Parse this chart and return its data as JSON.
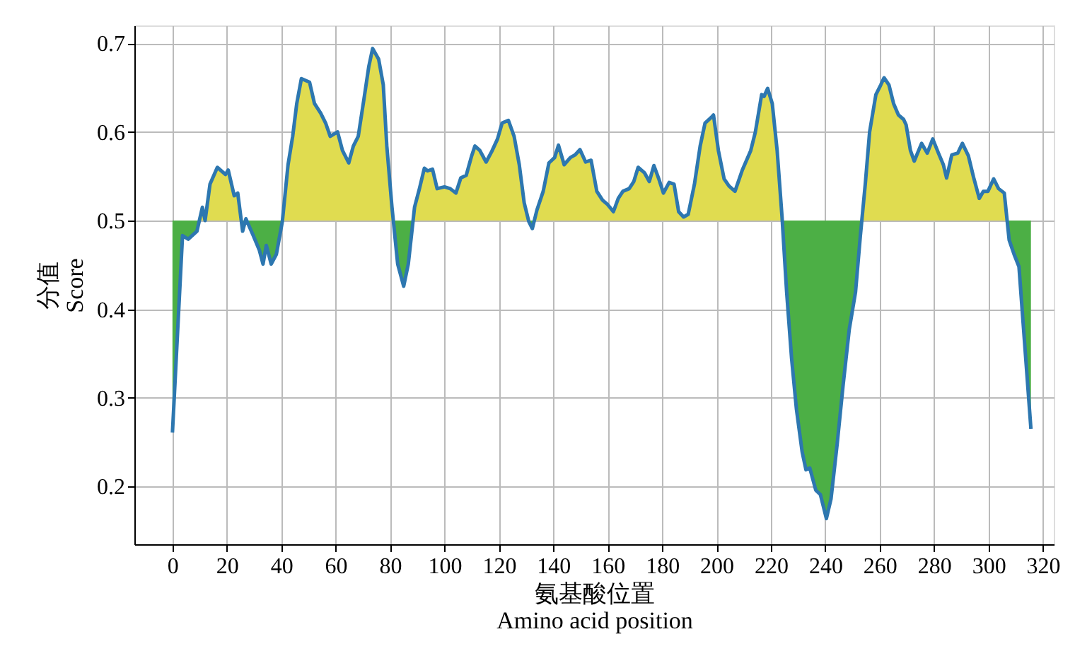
{
  "chart_data": {
    "type": "line",
    "xlabel": "氨基酸位置\nAmino acid position",
    "ylabel": "分值\nScore",
    "xlim": [
      -14,
      324
    ],
    "ylim": [
      0.135,
      0.72
    ],
    "xticks": [
      0,
      20,
      40,
      60,
      80,
      100,
      120,
      140,
      160,
      180,
      200,
      220,
      240,
      260,
      280,
      300,
      320
    ],
    "yticks": [
      0.2,
      0.3,
      0.4,
      0.5,
      0.6,
      0.7
    ],
    "grid": true,
    "colors": [
      "#e0dc50",
      "#4caf45"
    ],
    "series": [
      {
        "color": "#2d77b0",
        "x": [
          0,
          3.7,
          5.8,
          9,
          11,
          12,
          13.8,
          16.5,
          19.5,
          20.5,
          22.7,
          24,
          25.8,
          27,
          29.7,
          31.9,
          33.3,
          34.5,
          36.3,
          38.2,
          40.4,
          42.5,
          44.2,
          45.7,
          47.4,
          50.4,
          52.2,
          54.5,
          56.3,
          58,
          60.7,
          62.5,
          64.8,
          66.5,
          68.3,
          70.4,
          72.2,
          73.6,
          75.8,
          77.5,
          78.8,
          80.7,
          82.8,
          85,
          86.7,
          89,
          90.8,
          92.6,
          93.8,
          95.6,
          97.3,
          100,
          102.1,
          104.2,
          106,
          108,
          110,
          111.2,
          113,
          115.3,
          117.4,
          119.5,
          121.2,
          123.5,
          125.6,
          127.5,
          129.3,
          131,
          132.3,
          134,
          136.3,
          138.4,
          140.5,
          141.9,
          144,
          146.3,
          148,
          149.8,
          151.9,
          153.9,
          156,
          158.1,
          160,
          162.1,
          163.9,
          165.6,
          167.9,
          169.6,
          171.2,
          173.5,
          175.3,
          177,
          178.8,
          180.5,
          182.6,
          184.4,
          186.1,
          187.9,
          189.6,
          191.9,
          194,
          195.8,
          198,
          198.9,
          200.7,
          202.8,
          204.6,
          206.8,
          209.5,
          212.6,
          214.3,
          216.6,
          217.5,
          218.8,
          220.5,
          222.3,
          224.1,
          225.8,
          227.6,
          229.4,
          231.5,
          232.9,
          234.3,
          236.5,
          238.2,
          240.4,
          242.1,
          244.4,
          246.5,
          248.8,
          251.1,
          252.9,
          254.7,
          256.3,
          258.6,
          260.4,
          261.6,
          263.4,
          265.1,
          266.9,
          268.8,
          269.7,
          271.3,
          272.7,
          275.4,
          277.5,
          279.5,
          281.6,
          283.4,
          284.6,
          286.5,
          288.7,
          290.4,
          292.6,
          294.5,
          296.6,
          298.1,
          299.8,
          301.9,
          303.7,
          305.8,
          307.6,
          309.4,
          311.2,
          315.6
        ],
        "values": [
          0.261,
          0.483,
          0.479,
          0.488,
          0.515,
          0.5,
          0.541,
          0.56,
          0.552,
          0.557,
          0.528,
          0.531,
          0.488,
          0.502,
          0.483,
          0.467,
          0.451,
          0.472,
          0.451,
          0.462,
          0.499,
          0.563,
          0.595,
          0.632,
          0.66,
          0.656,
          0.632,
          0.621,
          0.61,
          0.595,
          0.6,
          0.579,
          0.565,
          0.584,
          0.595,
          0.637,
          0.674,
          0.694,
          0.682,
          0.653,
          0.584,
          0.515,
          0.451,
          0.426,
          0.451,
          0.515,
          0.536,
          0.559,
          0.556,
          0.558,
          0.536,
          0.538,
          0.536,
          0.531,
          0.548,
          0.551,
          0.573,
          0.584,
          0.579,
          0.566,
          0.578,
          0.592,
          0.61,
          0.613,
          0.595,
          0.563,
          0.52,
          0.499,
          0.491,
          0.512,
          0.533,
          0.565,
          0.571,
          0.585,
          0.563,
          0.571,
          0.574,
          0.58,
          0.566,
          0.568,
          0.533,
          0.523,
          0.518,
          0.51,
          0.525,
          0.533,
          0.536,
          0.544,
          0.56,
          0.554,
          0.544,
          0.562,
          0.547,
          0.531,
          0.543,
          0.541,
          0.51,
          0.504,
          0.507,
          0.541,
          0.584,
          0.61,
          0.616,
          0.619,
          0.579,
          0.547,
          0.539,
          0.533,
          0.557,
          0.579,
          0.6,
          0.642,
          0.64,
          0.649,
          0.632,
          0.579,
          0.504,
          0.419,
          0.345,
          0.287,
          0.239,
          0.219,
          0.221,
          0.196,
          0.191,
          0.164,
          0.186,
          0.249,
          0.313,
          0.377,
          0.419,
          0.483,
          0.541,
          0.6,
          0.642,
          0.653,
          0.661,
          0.653,
          0.632,
          0.619,
          0.614,
          0.608,
          0.579,
          0.567,
          0.587,
          0.576,
          0.592,
          0.576,
          0.563,
          0.548,
          0.574,
          0.576,
          0.587,
          0.573,
          0.549,
          0.525,
          0.533,
          0.533,
          0.547,
          0.536,
          0.531,
          0.478,
          0.462,
          0.448,
          0.265
        ],
        "upper": [
          0.261,
          0.483,
          0.479,
          0.488,
          0.515,
          0.5,
          0.541,
          0.56,
          0.552,
          0.557,
          0.528,
          0.531,
          0.488,
          0.502,
          0.483,
          0.467,
          0.451,
          0.472,
          0.451,
          0.462,
          0.499,
          0.563,
          0.595,
          0.632,
          0.66,
          0.656,
          0.632,
          0.621,
          0.61,
          0.595,
          0.6,
          0.579,
          0.565,
          0.584,
          0.595,
          0.637,
          0.674,
          0.694,
          0.682,
          0.653,
          0.584,
          0.515,
          0.451,
          0.426,
          0.451,
          0.515,
          0.536,
          0.559,
          0.556,
          0.558,
          0.536,
          0.538,
          0.536,
          0.531,
          0.548,
          0.551,
          0.573,
          0.584,
          0.579,
          0.566,
          0.578,
          0.592,
          0.61,
          0.613,
          0.595,
          0.563,
          0.52,
          0.499,
          0.491,
          0.512,
          0.533,
          0.565,
          0.571,
          0.585,
          0.563,
          0.571,
          0.574,
          0.58,
          0.566,
          0.568,
          0.533,
          0.523,
          0.518,
          0.51,
          0.525,
          0.533,
          0.536,
          0.544,
          0.56,
          0.554,
          0.544,
          0.562,
          0.547,
          0.531,
          0.543,
          0.541,
          0.51,
          0.504,
          0.507,
          0.541,
          0.584,
          0.61,
          0.616,
          0.619,
          0.579,
          0.547,
          0.539,
          0.533,
          0.557,
          0.579,
          0.6,
          0.642,
          0.64,
          0.649,
          0.632,
          0.579,
          0.504,
          0.419,
          0.345,
          0.287,
          0.239,
          0.219,
          0.221,
          0.196,
          0.191,
          0.164,
          0.186,
          0.249,
          0.313,
          0.377,
          0.419,
          0.483,
          0.541,
          0.6,
          0.642,
          0.653,
          0.661,
          0.653,
          0.632,
          0.619,
          0.614,
          0.608,
          0.579,
          0.567,
          0.587,
          0.576,
          0.592,
          0.576,
          0.563,
          0.548,
          0.574,
          0.576,
          0.587,
          0.573,
          0.549,
          0.525,
          0.533,
          0.533,
          0.547,
          0.536,
          0.531,
          0.478,
          0.462,
          0.448,
          0.265
        ],
        "lower": [
          0.5,
          0.5,
          0.5,
          0.5,
          0.5,
          0.5,
          0.5,
          0.5,
          0.5,
          0.5,
          0.5,
          0.5,
          0.5,
          0.5,
          0.5,
          0.5,
          0.5,
          0.5,
          0.5,
          0.5,
          0.5,
          0.5,
          0.5,
          0.5,
          0.5,
          0.5,
          0.5,
          0.5,
          0.5,
          0.5,
          0.5,
          0.5,
          0.5,
          0.5,
          0.5,
          0.5,
          0.5,
          0.5,
          0.5,
          0.5,
          0.5,
          0.5,
          0.5,
          0.5,
          0.5,
          0.5,
          0.5,
          0.5,
          0.5,
          0.5,
          0.5,
          0.5,
          0.5,
          0.5,
          0.5,
          0.5,
          0.5,
          0.5,
          0.5,
          0.5,
          0.5,
          0.5,
          0.5,
          0.5,
          0.5,
          0.5,
          0.5,
          0.5,
          0.5,
          0.5,
          0.5,
          0.5,
          0.5,
          0.5,
          0.5,
          0.5,
          0.5,
          0.5,
          0.5,
          0.5,
          0.5,
          0.5,
          0.5,
          0.5,
          0.5,
          0.5,
          0.5,
          0.5,
          0.5,
          0.5,
          0.5,
          0.5,
          0.5,
          0.5,
          0.5,
          0.5,
          0.5,
          0.5,
          0.5,
          0.5,
          0.5,
          0.5,
          0.5,
          0.5,
          0.5,
          0.5,
          0.5,
          0.5,
          0.5,
          0.5,
          0.5,
          0.5,
          0.5,
          0.5,
          0.5,
          0.5,
          0.5,
          0.5,
          0.5,
          0.5,
          0.5,
          0.5,
          0.5,
          0.5,
          0.5,
          0.5,
          0.5,
          0.5,
          0.5,
          0.5,
          0.5,
          0.5,
          0.5,
          0.5,
          0.5,
          0.5,
          0.5,
          0.5,
          0.5,
          0.5,
          0.5,
          0.5,
          0.5,
          0.5,
          0.5,
          0.5,
          0.5,
          0.5,
          0.5,
          0.5,
          0.5,
          0.5,
          0.5,
          0.5,
          0.5,
          0.5,
          0.5,
          0.5,
          0.5,
          0.5,
          0.5,
          0.5,
          0.5,
          0.5,
          0.5
        ]
      }
    ]
  }
}
